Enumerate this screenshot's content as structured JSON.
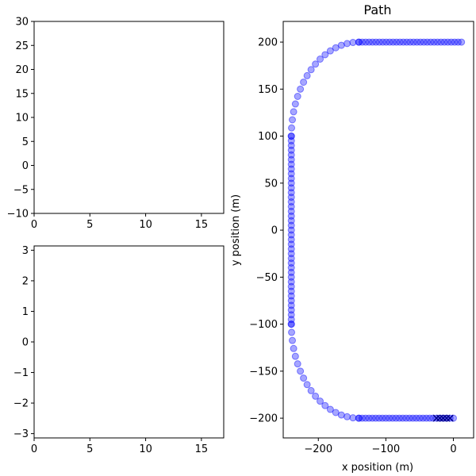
{
  "chart_data": [
    {
      "type": "line",
      "title": "",
      "xlabel": "",
      "ylabel": "",
      "xlim": [
        0,
        17
      ],
      "ylim": [
        -10,
        30
      ],
      "xticks": [
        0,
        5,
        10,
        15
      ],
      "yticks": [
        -10,
        -5,
        0,
        5,
        10,
        15,
        20,
        25,
        30
      ],
      "series": []
    },
    {
      "type": "line",
      "title": "",
      "xlabel": "",
      "ylabel": "",
      "xlim": [
        0,
        17
      ],
      "ylim": [
        -3.14,
        3.14
      ],
      "xticks": [
        0,
        5,
        10,
        15
      ],
      "yticks": [
        -3,
        -2,
        -1,
        0,
        1,
        2,
        3
      ],
      "series": []
    },
    {
      "type": "scatter",
      "title": "Path",
      "xlabel": "x position (m)",
      "ylabel": "y position (m)",
      "xlim": [
        -252,
        30
      ],
      "ylim": [
        -221,
        222
      ],
      "xticks": [
        -200,
        -100,
        0
      ],
      "yticks": [
        -200,
        -150,
        -100,
        -50,
        0,
        50,
        100,
        150,
        200
      ],
      "grid": false,
      "colors": {
        "path_points": "#0000ff",
        "marker_cross": "#00008b"
      },
      "path_points_segments": [
        {
          "from": [
            0,
            -200
          ],
          "to": [
            -140,
            -200
          ],
          "step": 5
        },
        {
          "arc_center": [
            -140,
            -100
          ],
          "radius": 100,
          "start_deg": 270,
          "end_deg": 180,
          "step_deg": 5
        },
        {
          "from": [
            -240,
            -100
          ],
          "to": [
            -240,
            100
          ],
          "step": 5
        },
        {
          "arc_center": [
            -140,
            100
          ],
          "radius": 100,
          "start_deg": 180,
          "end_deg": 90,
          "step_deg": 5
        },
        {
          "from": [
            -140,
            200
          ],
          "to": [
            12,
            200
          ],
          "step": 5
        }
      ],
      "markers_x": [
        -25,
        -20,
        -15,
        -10,
        -5
      ]
    }
  ]
}
